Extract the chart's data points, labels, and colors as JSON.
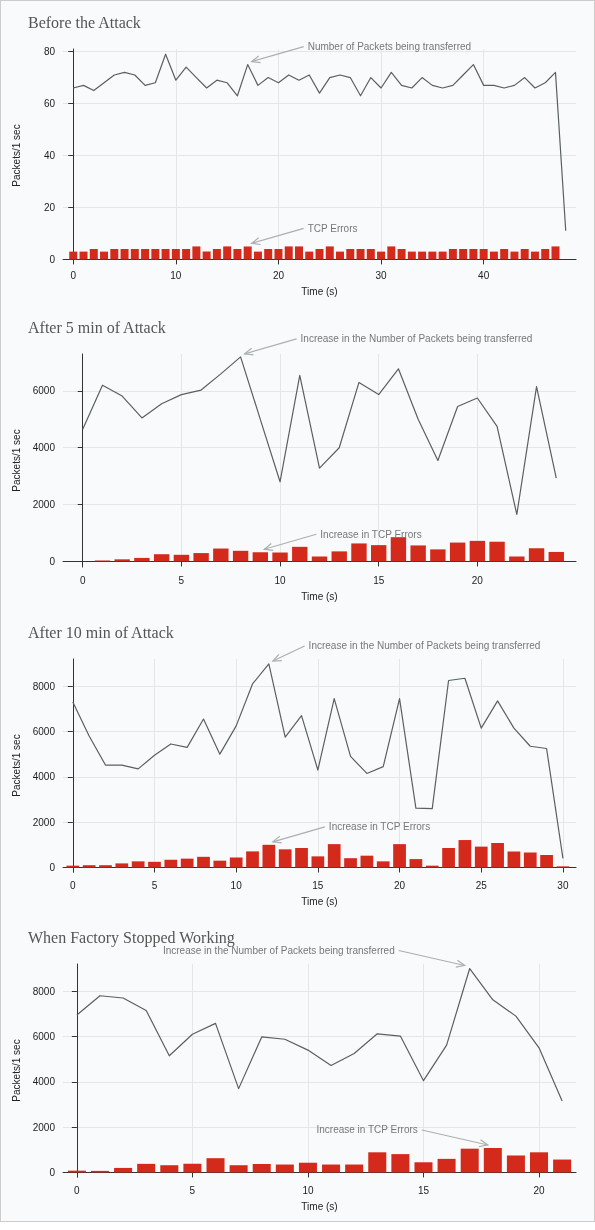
{
  "chart_data": [
    {
      "type": "line",
      "title": "Before the Attack",
      "xlabel": "Time (s)",
      "ylabel": "Packets/1 sec",
      "xlim": [
        -1,
        49
      ],
      "xticks": [
        0,
        10,
        20,
        30,
        40
      ],
      "ylim": [
        -1,
        81
      ],
      "yticks": [
        0,
        20,
        40,
        60,
        80
      ],
      "grid": true,
      "marker": "none",
      "line_style": "solid",
      "annotations": [
        {
          "text": "Number of Packets being transferred",
          "x": 17,
          "y": 75
        },
        {
          "text": "TCP Errors",
          "x": 17,
          "y": 5
        }
      ],
      "series": [
        {
          "color": "#5a6060",
          "x": [
            0,
            1,
            2,
            3,
            4,
            5,
            6,
            7,
            8,
            9,
            10,
            11,
            12,
            13,
            14,
            15,
            16,
            17,
            18,
            19,
            20,
            21,
            22,
            23,
            24,
            25,
            26,
            27,
            28,
            29,
            30,
            31,
            32,
            33,
            34,
            35,
            36,
            37,
            38,
            39,
            40,
            41,
            42,
            43,
            44,
            45,
            46,
            47,
            48
          ],
          "values": [
            66,
            67,
            65,
            68,
            71,
            72,
            71,
            67,
            68,
            79,
            69,
            74,
            70,
            66,
            69,
            68,
            63,
            75,
            67,
            70,
            68,
            71,
            69,
            71,
            64,
            70,
            71,
            70,
            63,
            70,
            66,
            72,
            67,
            66,
            70,
            67,
            66,
            67,
            71,
            75,
            67,
            67,
            66,
            67,
            70,
            66,
            68,
            72,
            11
          ]
        },
        {
          "type": "bar",
          "color": "#d42a1c",
          "x": [
            0,
            1,
            2,
            3,
            4,
            5,
            6,
            7,
            8,
            9,
            10,
            11,
            12,
            13,
            14,
            15,
            16,
            17,
            18,
            19,
            20,
            21,
            22,
            23,
            24,
            25,
            26,
            27,
            28,
            29,
            30,
            31,
            32,
            33,
            34,
            35,
            36,
            37,
            38,
            39,
            40,
            41,
            42,
            43,
            44,
            45,
            46,
            47
          ],
          "values": [
            3,
            3,
            4,
            3,
            4,
            4,
            4,
            4,
            4,
            4,
            4,
            4,
            5,
            3,
            4,
            5,
            4,
            5,
            3,
            4,
            4,
            5,
            5,
            3,
            4,
            5,
            3,
            4,
            4,
            4,
            3,
            5,
            4,
            3,
            3,
            3,
            3,
            4,
            4,
            4,
            4,
            3,
            4,
            3,
            4,
            3,
            4,
            5
          ]
        }
      ]
    },
    {
      "type": "line",
      "title": "After 5 min of Attack",
      "xlabel": "Time (s)",
      "ylabel": "Packets/1 sec",
      "xlim": [
        -1,
        25
      ],
      "xticks": [
        0,
        5,
        10,
        15,
        20
      ],
      "ylim": [
        -200,
        7300
      ],
      "yticks": [
        0,
        2000,
        4000,
        6000
      ],
      "grid": true,
      "marker": "none",
      "line_style": "solid",
      "annotations": [
        {
          "text": "Increase in the Number of Packets being transferred",
          "x": 8,
          "y": 7200
        },
        {
          "text": "Increase in TCP Errors",
          "x": 9,
          "y": 320
        }
      ],
      "series": [
        {
          "color": "#5a6060",
          "x": [
            0,
            1,
            2,
            3,
            4,
            5,
            6,
            7,
            8,
            9,
            10,
            11,
            12,
            13,
            14,
            15,
            16,
            17,
            18,
            19,
            20,
            21,
            22,
            23,
            24
          ],
          "values": [
            4650,
            6200,
            5820,
            5050,
            5550,
            5870,
            6030,
            6600,
            7200,
            5000,
            2800,
            6550,
            3280,
            4000,
            6300,
            5870,
            6780,
            5000,
            3550,
            5450,
            5750,
            4750,
            1650,
            6150,
            2930
          ]
        },
        {
          "type": "bar",
          "color": "#d42a1c",
          "x": [
            1,
            2,
            3,
            4,
            5,
            6,
            7,
            8,
            9,
            10,
            11,
            12,
            13,
            14,
            15,
            16,
            17,
            18,
            19,
            20,
            21,
            22,
            23,
            24
          ],
          "values": [
            30,
            70,
            120,
            250,
            230,
            290,
            450,
            370,
            320,
            310,
            510,
            170,
            350,
            630,
            570,
            850,
            560,
            420,
            660,
            720,
            690,
            170,
            460,
            330
          ]
        }
      ]
    },
    {
      "type": "line",
      "title": "After 10 min of Attack",
      "xlabel": "Time (s)",
      "ylabel": "Packets/1 sec",
      "xlim": [
        -0.6,
        30.8
      ],
      "xticks": [
        0,
        5,
        10,
        15,
        20,
        25,
        30
      ],
      "ylim": [
        -200,
        9200
      ],
      "yticks": [
        0,
        2000,
        4000,
        6000,
        8000
      ],
      "grid": true,
      "marker": "none",
      "line_style": "solid",
      "annotations": [
        {
          "text": "Increase in the Number of Packets being transferred",
          "x": 12,
          "y": 8980
        },
        {
          "text": "Increase in TCP Errors",
          "x": 12,
          "y": 1000
        }
      ],
      "series": [
        {
          "color": "#5a6060",
          "x": [
            0,
            1,
            2,
            3,
            4,
            5,
            6,
            7,
            8,
            9,
            10,
            11,
            12,
            13,
            14,
            15,
            16,
            17,
            18,
            19,
            20,
            21,
            22,
            23,
            24,
            25,
            26,
            27,
            28,
            29,
            30
          ],
          "values": [
            7300,
            5800,
            4520,
            4520,
            4350,
            4950,
            5450,
            5300,
            6550,
            5000,
            6250,
            8100,
            8980,
            5750,
            6700,
            4300,
            7450,
            4900,
            4150,
            4450,
            7450,
            2620,
            2600,
            8250,
            8350,
            6150,
            7350,
            6150,
            5350,
            5250,
            400
          ]
        },
        {
          "type": "bar",
          "color": "#d42a1c",
          "x": [
            0,
            1,
            2,
            3,
            4,
            5,
            6,
            7,
            8,
            9,
            10,
            11,
            12,
            13,
            14,
            15,
            16,
            17,
            18,
            19,
            20,
            21,
            22,
            23,
            24,
            25,
            26,
            27,
            28,
            29,
            30
          ],
          "values": [
            80,
            100,
            100,
            180,
            270,
            250,
            340,
            390,
            470,
            300,
            440,
            710,
            1000,
            800,
            860,
            490,
            1030,
            410,
            520,
            270,
            1030,
            370,
            80,
            860,
            1210,
            920,
            1080,
            710,
            660,
            550,
            50
          ]
        }
      ]
    },
    {
      "type": "line",
      "title": "When Factory Stopped Working",
      "xlabel": "Time (s)",
      "ylabel": "Packets/1 sec",
      "xlim": [
        -0.6,
        21.6
      ],
      "xticks": [
        0,
        5,
        10,
        15,
        20
      ],
      "ylim": [
        -200,
        9200
      ],
      "yticks": [
        0,
        2000,
        4000,
        6000,
        8000
      ],
      "grid": true,
      "marker": "none",
      "line_style": "solid",
      "annotations": [
        {
          "text": "Increase in the Number of Packets being transferred",
          "x": 17,
          "y": 9000
        },
        {
          "text": "Increase in TCP Errors",
          "x": 18,
          "y": 1080
        }
      ],
      "series": [
        {
          "color": "#5a6060",
          "x": [
            0,
            1,
            2,
            3,
            4,
            5,
            6,
            7,
            8,
            9,
            10,
            11,
            12,
            13,
            14,
            15,
            16,
            17,
            18,
            19,
            20,
            21
          ],
          "values": [
            6950,
            7800,
            7700,
            7150,
            5150,
            6100,
            6580,
            3700,
            5980,
            5880,
            5400,
            4720,
            5250,
            6120,
            6020,
            4050,
            5620,
            9000,
            7620,
            6900,
            5500,
            3150
          ]
        },
        {
          "type": "bar",
          "color": "#d42a1c",
          "x": [
            0,
            1,
            2,
            3,
            4,
            5,
            6,
            7,
            8,
            9,
            10,
            11,
            12,
            13,
            14,
            15,
            16,
            17,
            18,
            19,
            20,
            21
          ],
          "values": [
            80,
            70,
            200,
            380,
            320,
            380,
            630,
            320,
            370,
            350,
            430,
            350,
            350,
            890,
            810,
            450,
            600,
            1050,
            1080,
            750,
            890,
            570
          ]
        }
      ]
    }
  ]
}
